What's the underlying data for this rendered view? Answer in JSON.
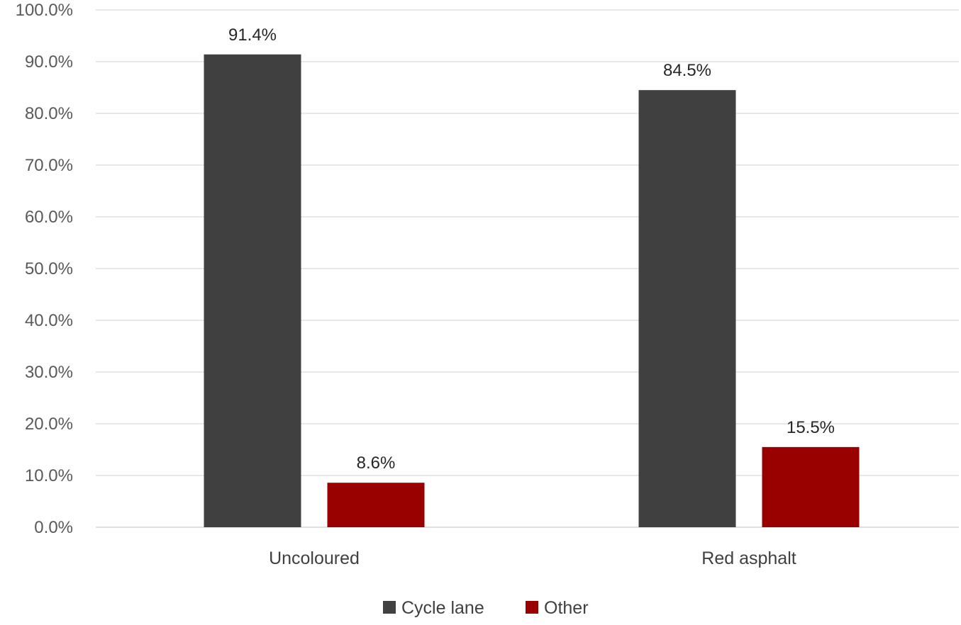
{
  "chart_data": {
    "type": "bar",
    "categories": [
      "Uncoloured",
      "Red asphalt"
    ],
    "series": [
      {
        "name": "Cycle lane",
        "color": "#404040",
        "values": [
          91.4,
          84.5
        ],
        "labels": [
          "91.4%",
          "84.5%"
        ]
      },
      {
        "name": "Other",
        "color": "#990000",
        "values": [
          8.6,
          15.5
        ],
        "labels": [
          "8.6%",
          "15.5%"
        ]
      }
    ],
    "ylim": [
      0,
      100
    ],
    "ytick_values": [
      0,
      10,
      20,
      30,
      40,
      50,
      60,
      70,
      80,
      90,
      100
    ],
    "ytick_labels": [
      "0.0%",
      "10.0%",
      "20.0%",
      "30.0%",
      "40.0%",
      "50.0%",
      "60.0%",
      "70.0%",
      "80.0%",
      "90.0%",
      "100.0%"
    ],
    "grid": true,
    "gridline_color": "#d9d9d9",
    "legend_position": "bottom"
  }
}
